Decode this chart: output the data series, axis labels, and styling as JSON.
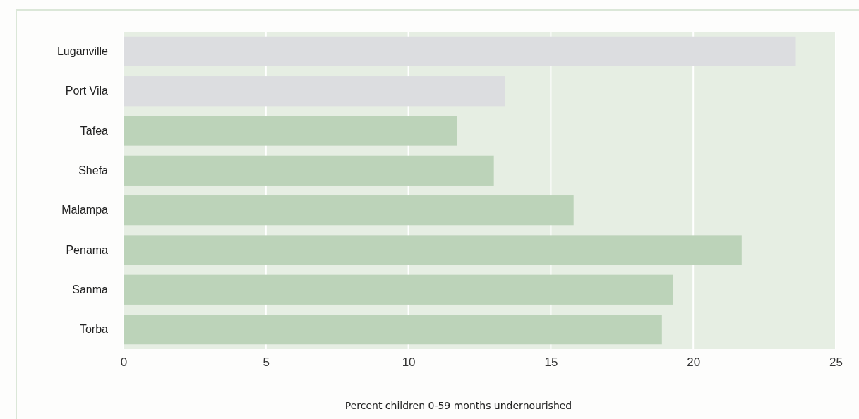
{
  "chart_data": {
    "type": "bar",
    "orientation": "horizontal",
    "xlabel": "Percent children 0-59 months undernourished",
    "categories": [
      "Luganville",
      "Port Vila",
      "Tafea",
      "Shefa",
      "Malampa",
      "Penama",
      "Sanma",
      "Torba"
    ],
    "values": [
      23.6,
      13.4,
      11.7,
      13.0,
      15.8,
      21.7,
      19.3,
      18.9
    ],
    "colors": [
      "#dcdde0",
      "#dcdde0",
      "#bcd3b9",
      "#bcd3b9",
      "#bcd3b9",
      "#bcd3b9",
      "#bcd3b9",
      "#bcd3b9"
    ],
    "xlim": [
      0,
      25
    ],
    "xticks": [
      0,
      5,
      10,
      15,
      20,
      25
    ],
    "grid": "x"
  }
}
